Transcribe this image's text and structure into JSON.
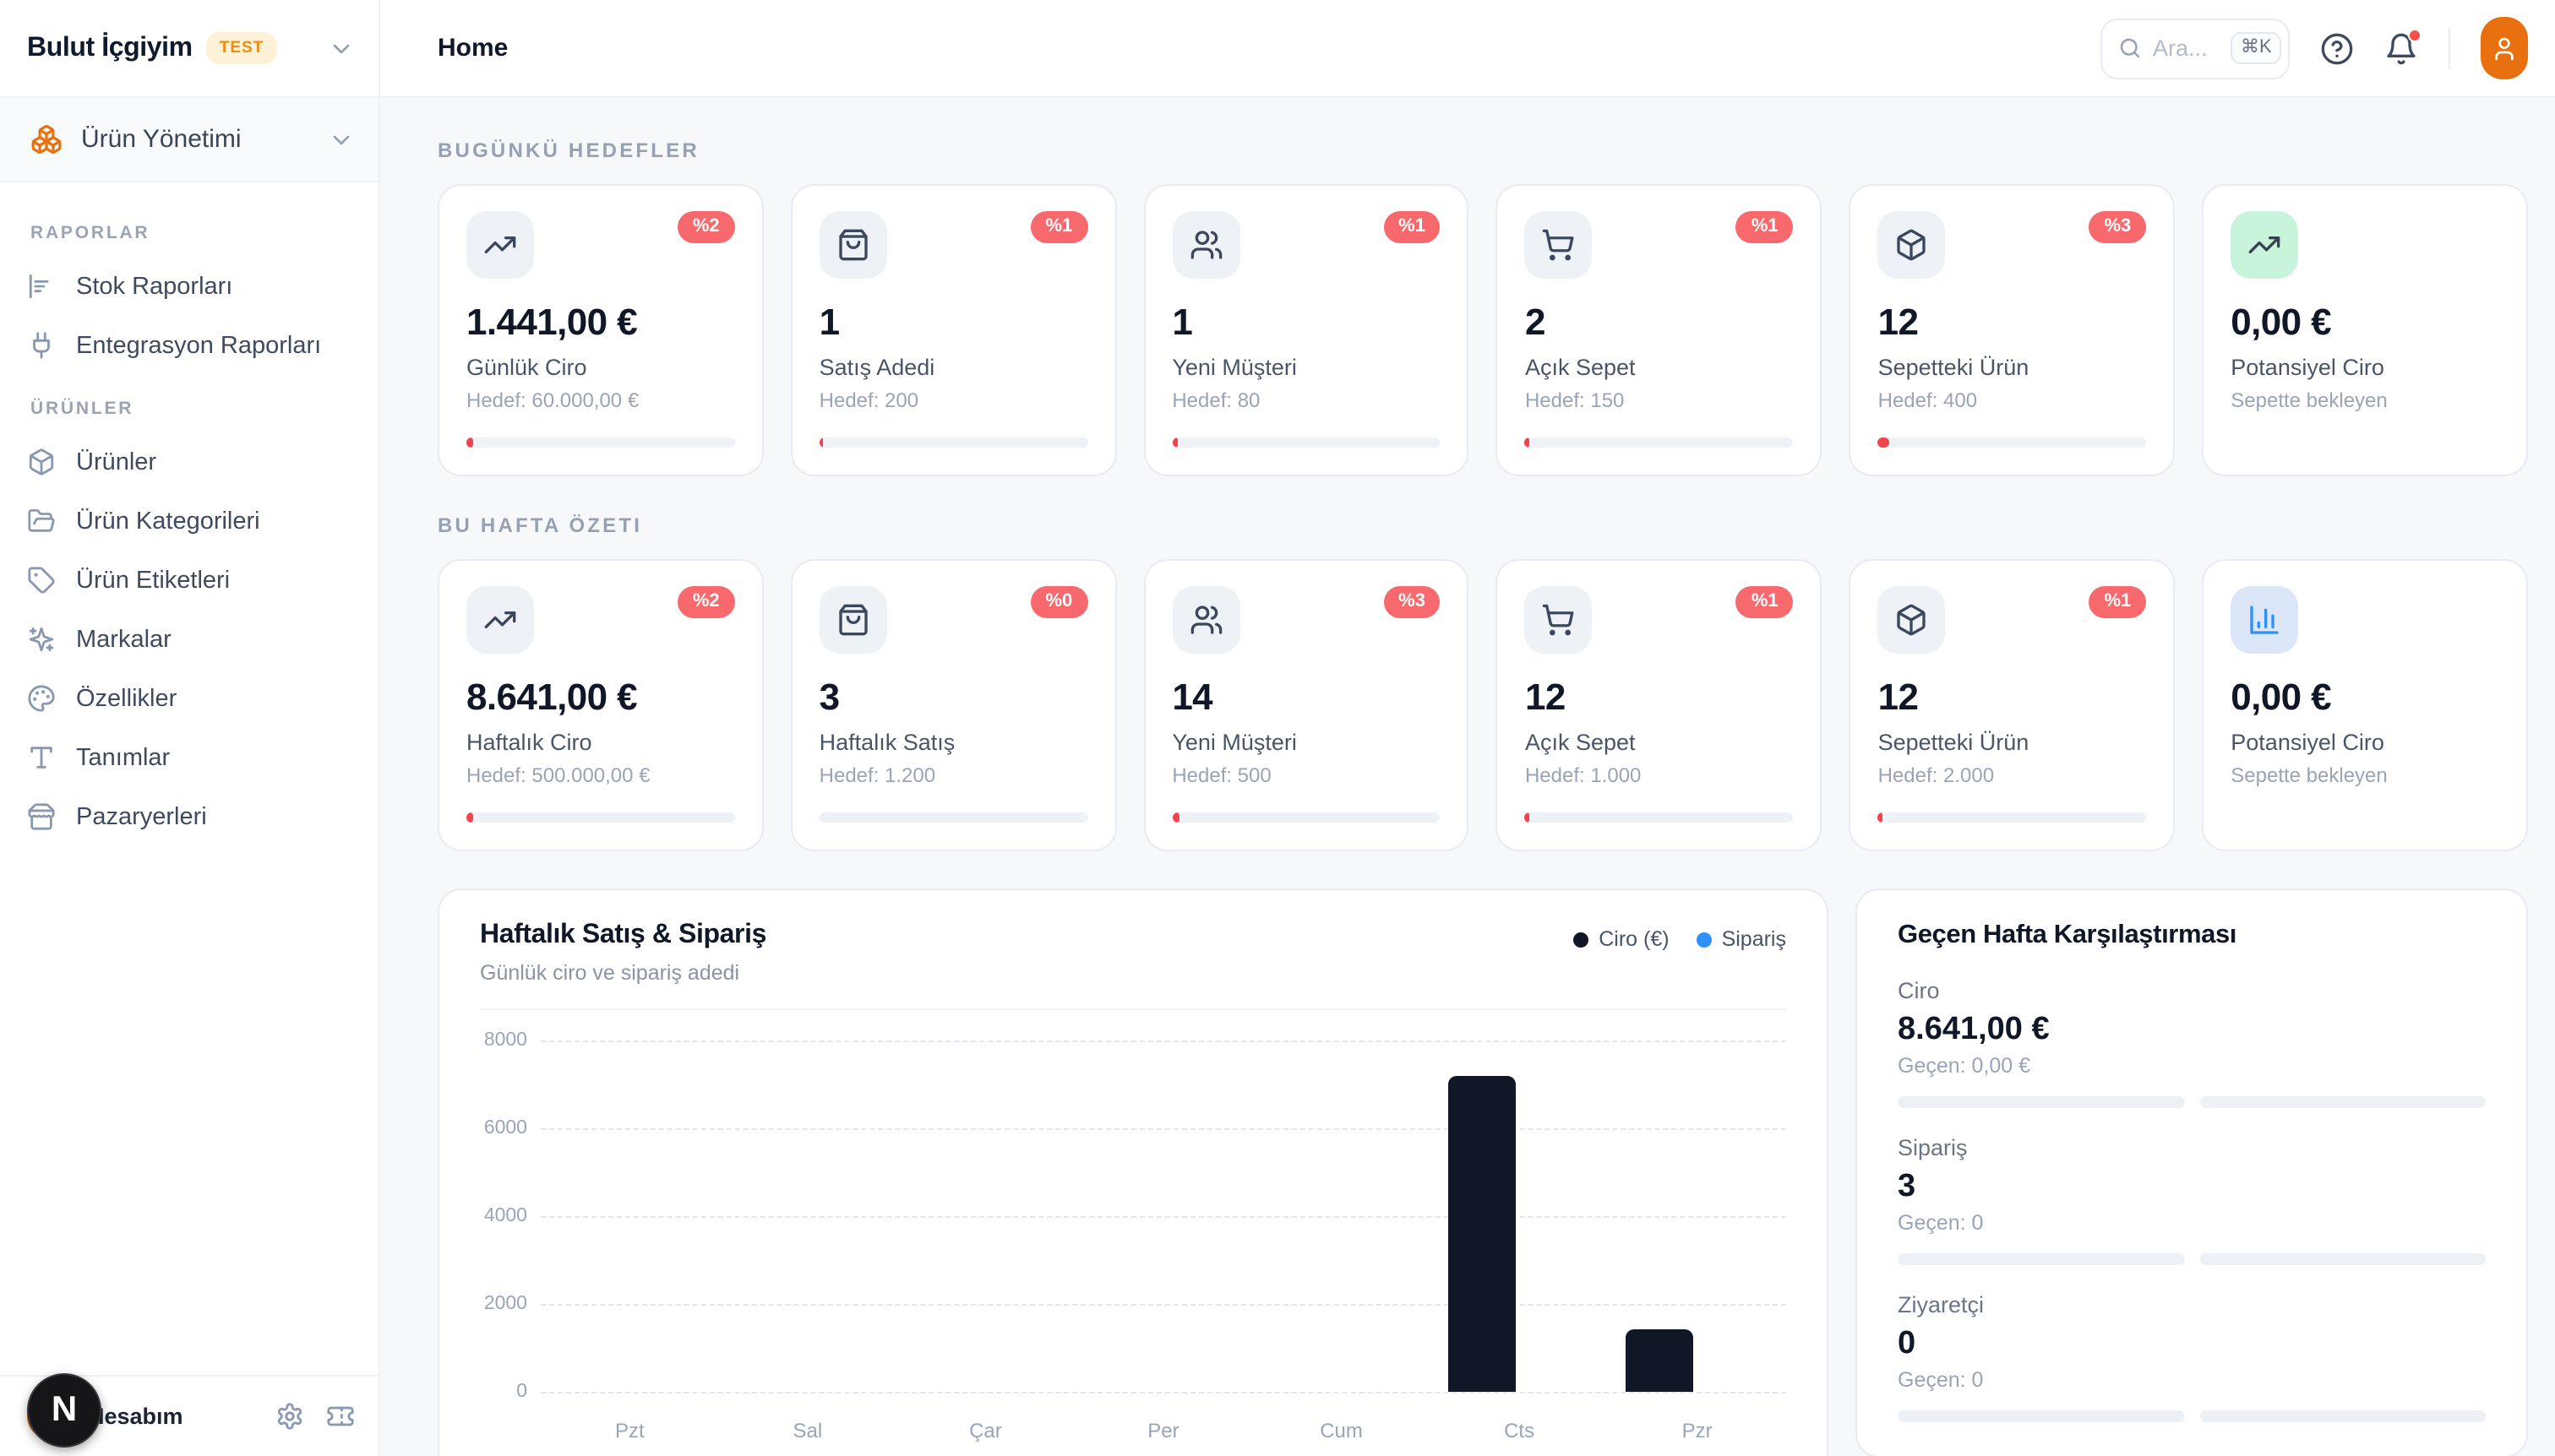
{
  "sidebar": {
    "brand": {
      "name": "Bulut İçgiyim",
      "badge": "TEST"
    },
    "workspace": {
      "icon": "boxes-icon",
      "label": "Ürün Yönetimi"
    },
    "sections": [
      {
        "label": "RAPORLAR",
        "items": [
          {
            "icon": "bar-chart-horizontal-icon",
            "label": "Stok Raporları"
          },
          {
            "icon": "plug-icon",
            "label": "Entegrasyon Raporları"
          }
        ]
      },
      {
        "label": "ÜRÜNLER",
        "items": [
          {
            "icon": "package-icon",
            "label": "Ürünler"
          },
          {
            "icon": "folder-open-icon",
            "label": "Ürün Kategorileri"
          },
          {
            "icon": "tag-icon",
            "label": "Ürün Etiketleri"
          },
          {
            "icon": "sparkles-icon",
            "label": "Markalar"
          },
          {
            "icon": "palette-icon",
            "label": "Özellikler"
          },
          {
            "icon": "type-icon",
            "label": "Tanımlar"
          },
          {
            "icon": "store-icon",
            "label": "Pazaryerleri"
          }
        ]
      }
    ],
    "footer": {
      "account_label": "Hesabım",
      "dev_badge": "N",
      "icons": [
        "gear-icon",
        "ticket-icon"
      ]
    }
  },
  "header": {
    "title": "Home",
    "search": {
      "placeholder": "Ara...",
      "shortcut": "⌘K"
    }
  },
  "goals_today": {
    "label": "BUGÜNKÜ HEDEFLER",
    "cards": [
      {
        "icon": "trending-up-icon",
        "tone": "slate",
        "badge": "%2",
        "value": "1.441,00 €",
        "label": "Günlük Ciro",
        "sub": "Hedef: 60.000,00 €",
        "progress_pct": 2.5
      },
      {
        "icon": "shopping-bag-icon",
        "tone": "slate",
        "badge": "%1",
        "value": "1",
        "label": "Satış Adedi",
        "sub": "Hedef: 200",
        "progress_pct": 1.5
      },
      {
        "icon": "users-icon",
        "tone": "slate",
        "badge": "%1",
        "value": "1",
        "label": "Yeni Müşteri",
        "sub": "Hedef: 80",
        "progress_pct": 2
      },
      {
        "icon": "shopping-cart-icon",
        "tone": "slate",
        "badge": "%1",
        "value": "2",
        "label": "Açık Sepet",
        "sub": "Hedef: 150",
        "progress_pct": 1.5
      },
      {
        "icon": "package-icon",
        "tone": "slate",
        "badge": "%3",
        "value": "12",
        "label": "Sepetteki Ürün",
        "sub": "Hedef: 400",
        "progress_pct": 4
      },
      {
        "icon": "trending-up-icon",
        "tone": "green",
        "badge": null,
        "value": "0,00 €",
        "label": "Potansiyel Ciro",
        "sub": "Sepette bekleyen",
        "progress_pct": null
      }
    ]
  },
  "week_summary": {
    "label": "BU HAFTA ÖZETI",
    "cards": [
      {
        "icon": "trending-up-icon",
        "tone": "slate",
        "badge": "%2",
        "value": "8.641,00 €",
        "label": "Haftalık Ciro",
        "sub": "Hedef: 500.000,00 €",
        "progress_pct": 2.5
      },
      {
        "icon": "shopping-bag-icon",
        "tone": "slate",
        "badge": "%0",
        "value": "3",
        "label": "Haftalık Satış",
        "sub": "Hedef: 1.200",
        "progress_pct": 0
      },
      {
        "icon": "users-icon",
        "tone": "slate",
        "badge": "%3",
        "value": "14",
        "label": "Yeni Müşteri",
        "sub": "Hedef: 500",
        "progress_pct": 3
      },
      {
        "icon": "shopping-cart-icon",
        "tone": "slate",
        "badge": "%1",
        "value": "12",
        "label": "Açık Sepet",
        "sub": "Hedef: 1.000",
        "progress_pct": 1.5
      },
      {
        "icon": "package-icon",
        "tone": "slate",
        "badge": "%1",
        "value": "12",
        "label": "Sepetteki Ürün",
        "sub": "Hedef: 2.000",
        "progress_pct": 1.5
      },
      {
        "icon": "bar-chart-icon",
        "tone": "blue",
        "badge": null,
        "value": "0,00 €",
        "label": "Potansiyel Ciro",
        "sub": "Sepette bekleyen",
        "progress_pct": null
      }
    ]
  },
  "chart_card": {
    "title": "Haftalık Satış & Sipariş",
    "subtitle": "Günlük ciro ve sipariş adedi"
  },
  "chart_data": {
    "type": "bar",
    "title": "Haftalık Satış & Sipariş",
    "subtitle": "Günlük ciro ve sipariş adedi",
    "categories": [
      "Pzt",
      "Sal",
      "Çar",
      "Per",
      "Cum",
      "Cts",
      "Pzr"
    ],
    "series": [
      {
        "name": "Ciro (€)",
        "color": "#101828",
        "values": [
          0,
          0,
          0,
          0,
          0,
          7200,
          1441
        ]
      },
      {
        "name": "Sipariş",
        "color": "#2E90FA",
        "values": [
          0,
          0,
          0,
          0,
          0,
          2,
          1
        ]
      }
    ],
    "ylim": [
      0,
      8000
    ],
    "yticks": [
      0,
      2000,
      4000,
      6000,
      8000
    ],
    "grid": "horizontal-dashed",
    "legend_position": "top-right"
  },
  "comparison": {
    "title": "Geçen Hafta Karşılaştırması",
    "rows": [
      {
        "label": "Ciro",
        "value": "8.641,00 €",
        "prev": "Geçen: 0,00 €"
      },
      {
        "label": "Sipariş",
        "value": "3",
        "prev": "Geçen: 0"
      },
      {
        "label": "Ziyaretçi",
        "value": "0",
        "prev": "Geçen: 0"
      }
    ]
  },
  "colors": {
    "accent_orange": "#E8700E",
    "badge_red": "#F8696D",
    "progress_red": "#F1444A",
    "bar_dark": "#101828",
    "bar_blue": "#2E90FA",
    "green_tile_bg": "#C9F4DC",
    "blue_tile_bg": "#DBE7F8",
    "test_badge_bg": "#FDF1D7",
    "test_badge_text": "#EF8B0C"
  }
}
